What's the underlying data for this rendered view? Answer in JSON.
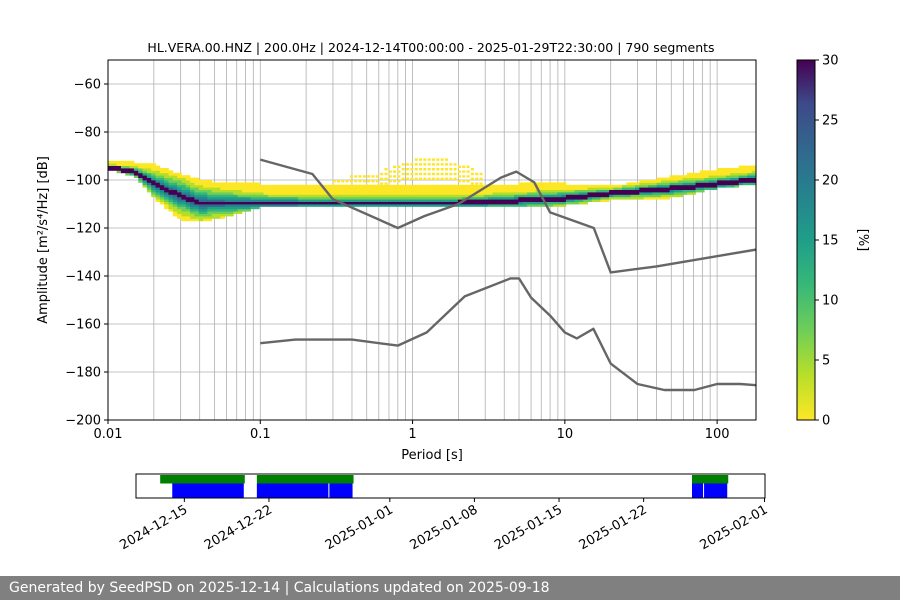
{
  "footer": {
    "text": "Generated by SeedPSD on 2025-12-14 | Calculations updated on 2025-09-18"
  },
  "colors": {
    "noise_model": "#666666",
    "grid": "#b0b0b0",
    "bar_green": "#008000",
    "bar_blue": "#0000ff",
    "footer_bg": "#808080"
  },
  "chart_data": [
    {
      "type": "heatmap",
      "title": "HL.VERA.00.HNZ | 200.0Hz | 2024-12-14T00:00:00 - 2025-01-29T22:30:00 | 790 segments",
      "xlabel": "Period [s]",
      "ylabel": "Amplitude [m²/s⁴/Hz] [dB]",
      "xscale": "log",
      "xlim": [
        0.01,
        180
      ],
      "ylim": [
        -200,
        -50
      ],
      "xticks": [
        0.01,
        0.1,
        1,
        10,
        100
      ],
      "xtick_labels": [
        "0.01",
        "0.1",
        "1",
        "10",
        "100"
      ],
      "yticks": [
        -60,
        -80,
        -100,
        -120,
        -140,
        -160,
        -180,
        -200
      ],
      "ytick_labels": [
        "−60",
        "−80",
        "−100",
        "−120",
        "−140",
        "−160",
        "−180",
        "−200"
      ],
      "grid": true,
      "colorbar": {
        "label": "[%]",
        "range": [
          0,
          30
        ],
        "ticks": [
          0,
          5,
          10,
          15,
          20,
          25,
          30
        ],
        "tick_labels": [
          "0",
          "5",
          "10",
          "15",
          "20",
          "25",
          "30"
        ],
        "colormap": "viridis_r"
      },
      "density_ridge": {
        "period": [
          0.01,
          0.015,
          0.02,
          0.03,
          0.04,
          0.06,
          0.1,
          0.2,
          0.5,
          1,
          2,
          5,
          10,
          20,
          50,
          100,
          180
        ],
        "mode_db": [
          -95,
          -97,
          -102,
          -107,
          -110,
          -110,
          -110,
          -110,
          -110,
          -110,
          -110,
          -109,
          -108,
          -106,
          -104,
          -102,
          -100
        ],
        "min_db": [
          -93,
          -93,
          -94,
          -98,
          -100,
          -102,
          -102,
          -103,
          -103,
          -103,
          -103,
          -102,
          -102,
          -103,
          -99,
          -96,
          -94
        ],
        "max_db": [
          -96,
          -99,
          -108,
          -117,
          -118,
          -116,
          -112,
          -111,
          -111,
          -111,
          -111,
          -111,
          -111,
          -109,
          -108,
          -104,
          -102
        ]
      },
      "secondary_band": {
        "period": [
          0.3,
          0.6,
          1,
          1.3,
          2,
          3
        ],
        "upper_db": [
          -100,
          -97,
          -92,
          -90,
          -93,
          -98
        ],
        "lower_db": [
          -104,
          -103,
          -100,
          -100,
          -101,
          -103
        ]
      },
      "series": [
        {
          "name": "",
          "x": [
            0.1,
            0.22,
            0.3,
            0.8,
            1.2,
            2,
            3.8,
            4.8,
            6.3,
            8,
            15.5,
            20,
            40,
            180
          ],
          "y": [
            -91.5,
            -97.5,
            -108,
            -120,
            -115,
            -110,
            -99,
            -96.5,
            -101,
            -113.5,
            -120,
            -138.5,
            -136,
            -129
          ]
        },
        {
          "name": "",
          "x": [
            0.1,
            0.17,
            0.4,
            0.8,
            1.24,
            2.2,
            4.4,
            5.0,
            6.0,
            8.0,
            10,
            12,
            15.4,
            20,
            30,
            45,
            71,
            100,
            142,
            180
          ],
          "y": [
            -168,
            -166.5,
            -166.5,
            -169,
            -163.5,
            -148.5,
            -141,
            -141,
            -149,
            -156.5,
            -163.5,
            -166,
            -162,
            -176.5,
            -185,
            -187.5,
            -187.5,
            -185,
            -185,
            -185.5
          ]
        }
      ]
    },
    {
      "type": "bar",
      "title": "",
      "xlabel": "",
      "ylabel": "",
      "xlim": [
        "2024-12-11",
        "2025-02-01"
      ],
      "xtick_labels": [
        "2024-12-15",
        "2024-12-22",
        "2025-01-01",
        "2025-01-08",
        "2025-01-15",
        "2025-01-22",
        "2025-02-01"
      ],
      "series": [
        {
          "name": "",
          "color": "#008000",
          "intervals": [
            [
              "2024-12-13",
              "2024-12-20"
            ],
            [
              "2024-12-21",
              "2024-12-29"
            ],
            [
              "2025-01-26",
              "2025-01-29"
            ]
          ]
        },
        {
          "name": "",
          "color": "#0000ff",
          "intervals": [
            [
              "2024-12-14",
              "2024-12-20"
            ],
            [
              "2024-12-21",
              "2024-12-27"
            ],
            [
              "2024-12-27",
              "2024-12-29"
            ],
            [
              "2025-01-26",
              "2025-01-27"
            ],
            [
              "2025-01-27",
              "2025-01-29"
            ]
          ]
        }
      ]
    }
  ]
}
